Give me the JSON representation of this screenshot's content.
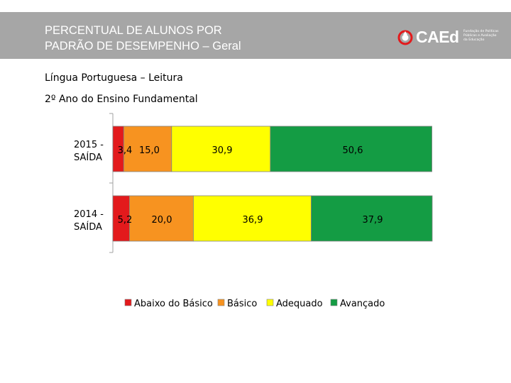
{
  "header": {
    "title_line1": "PERCENTUAL DE ALUNOS POR",
    "title_line2": "PADRÃO DE DESEMPENHO – Geral",
    "logo_text": "CAEd",
    "logo_sub": [
      "Fundação de Políticas",
      "Públicas e Avaliação",
      "da Educação"
    ]
  },
  "subtitle1": "Língua Portuguesa – Leitura",
  "subtitle2": "2º Ano do Ensino Fundamental",
  "chart_data": {
    "type": "bar",
    "orientation": "horizontal",
    "stacked": true,
    "categories": [
      [
        "2015 -",
        "SAÍDA"
      ],
      [
        "2014 -",
        "SAÍDA"
      ]
    ],
    "series": [
      {
        "name": "Abaixo do Básico",
        "color": "#e31a1c",
        "values": [
          3.4,
          5.2
        ],
        "labels": [
          "3,4",
          "5,2"
        ]
      },
      {
        "name": "Básico",
        "color": "#f79320",
        "values": [
          15.0,
          20.0
        ],
        "labels": [
          "15,0",
          "20,0"
        ]
      },
      {
        "name": "Adequado",
        "color": "#ffff00",
        "values": [
          30.9,
          36.9
        ],
        "labels": [
          "30,9",
          "36,9"
        ]
      },
      {
        "name": "Avançado",
        "color": "#149c44",
        "values": [
          50.6,
          37.9
        ],
        "labels": [
          "50,6",
          "37,9"
        ]
      }
    ],
    "xlim": [
      0,
      100
    ],
    "legend_position": "bottom"
  }
}
